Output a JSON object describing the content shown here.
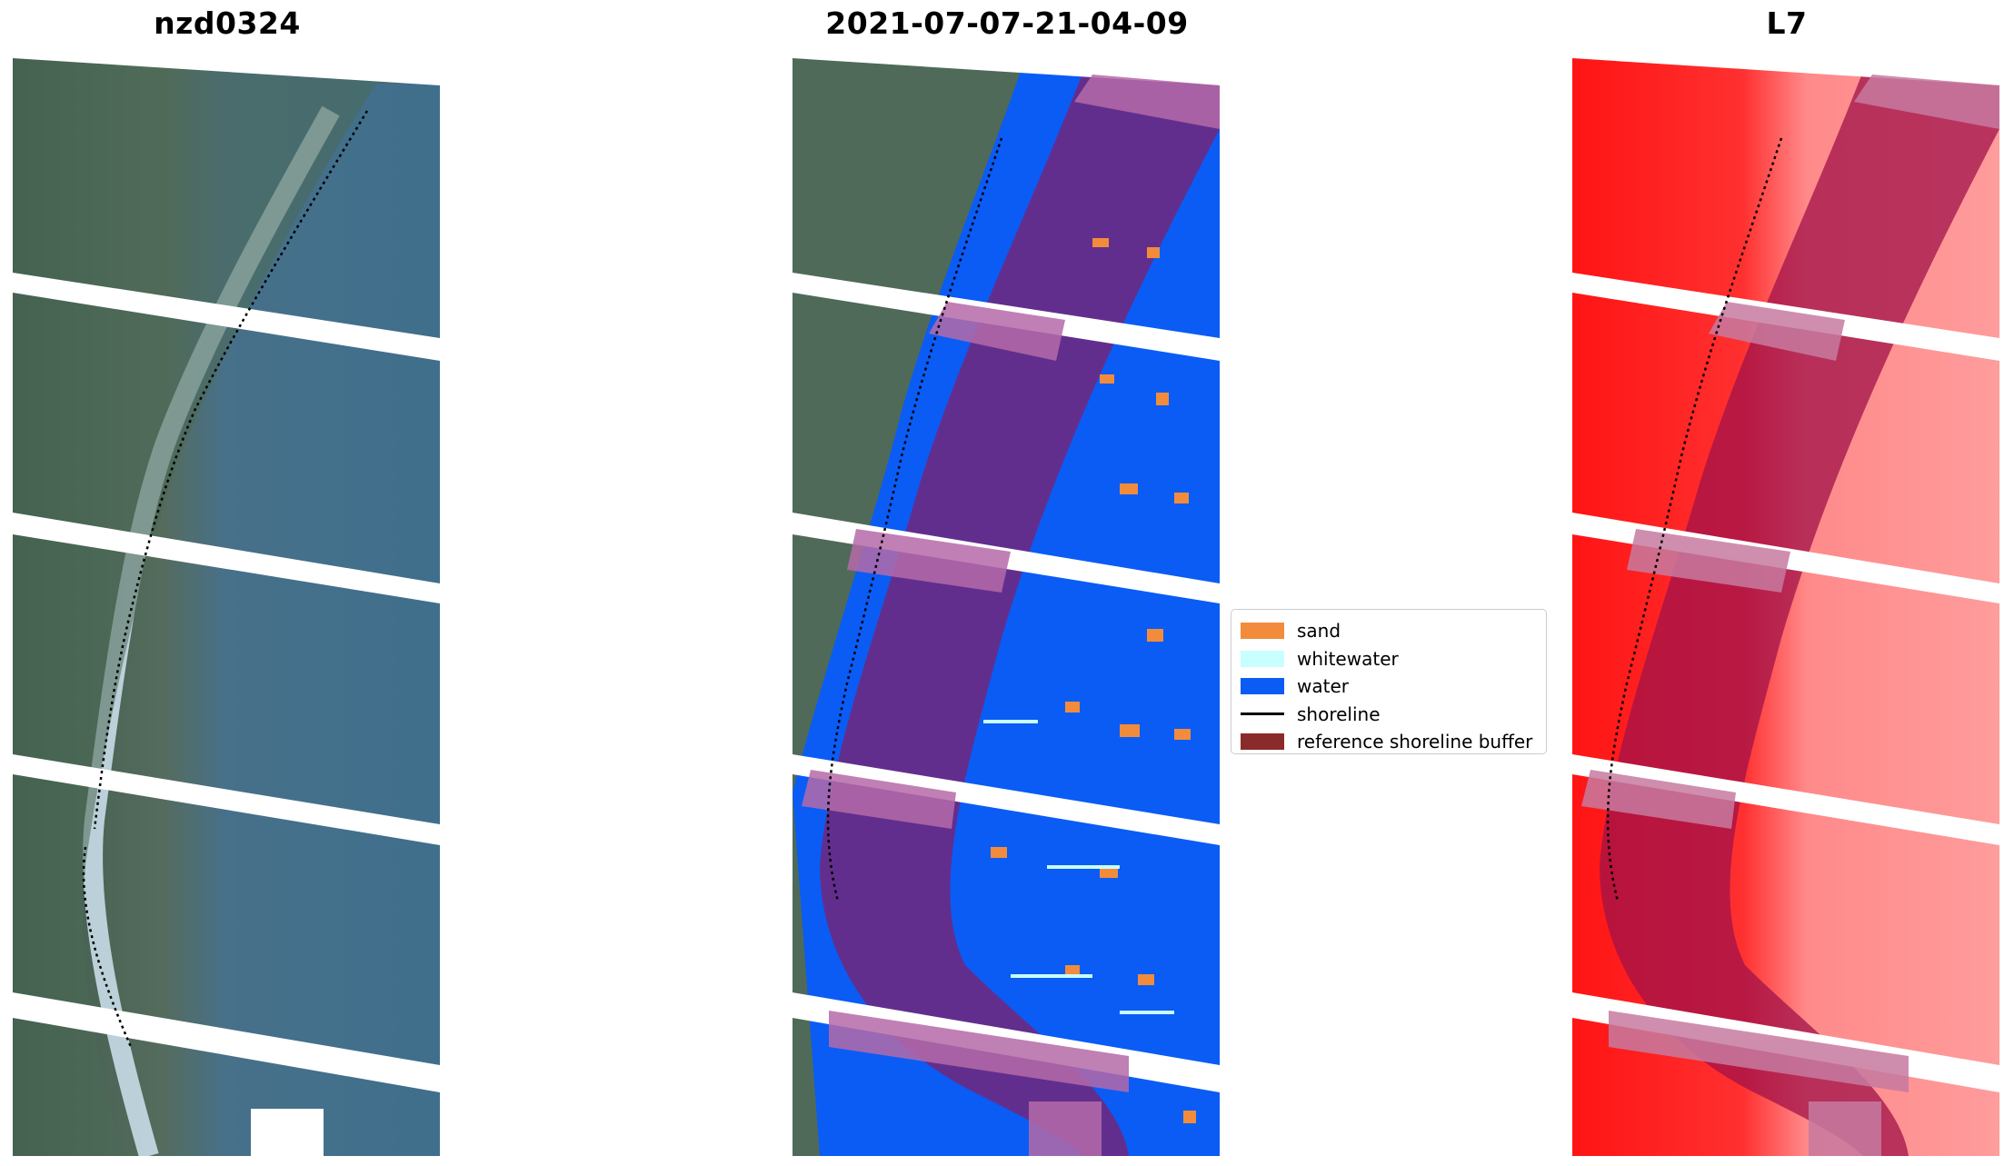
{
  "panels": [
    {
      "title": "nzd0324"
    },
    {
      "title": "2021-07-07-21-04-09"
    },
    {
      "title": "L7"
    }
  ],
  "legend": {
    "items": [
      {
        "label": "sand",
        "color": "#f28c3c",
        "kind": "patch"
      },
      {
        "label": "whitewater",
        "color": "#c8ffff",
        "kind": "patch"
      },
      {
        "label": "water",
        "color": "#0a5cf5",
        "kind": "patch"
      },
      {
        "label": "shoreline",
        "color": "#000000",
        "kind": "line"
      },
      {
        "label": "reference shoreline buffer",
        "color": "#8b2a2a",
        "kind": "patch"
      }
    ]
  },
  "colors": {
    "land": "#4a6a5a",
    "sea_rgb": "#3f6f86",
    "water_class": "#0a5cf5",
    "buffer": "#7a2a7a",
    "index_red": "#ff1a1a",
    "index_pink": "#ff9090"
  }
}
